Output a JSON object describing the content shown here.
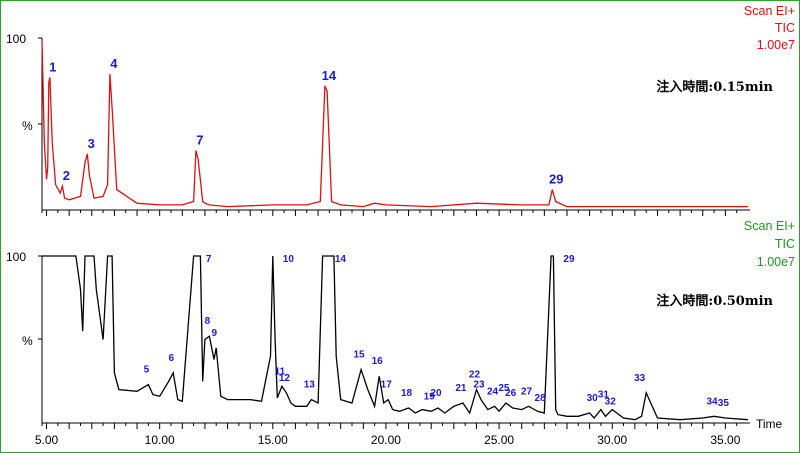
{
  "chart_data": [
    {
      "type": "line",
      "header": [
        "Scan EI+",
        "TIC",
        "1.00e7"
      ],
      "header_color": "#e01010",
      "trace_color": "#e01010",
      "ylabel_top": "100",
      "ylabel_mid": "%",
      "annotation": "注入時間:0.15min",
      "x": [
        4.8,
        4.9,
        5.0,
        5.05,
        5.1,
        5.15,
        5.25,
        5.4,
        5.6,
        5.7,
        5.8,
        6.0,
        6.5,
        6.7,
        6.8,
        6.9,
        7.1,
        7.5,
        7.7,
        7.8,
        7.9,
        8.1,
        9.0,
        10.0,
        11.0,
        11.5,
        11.6,
        11.7,
        11.9,
        12.0,
        12.2,
        13.0,
        15.0,
        16.5,
        17.1,
        17.3,
        17.4,
        17.6,
        18.0,
        19.0,
        19.5,
        20.0,
        22.0,
        24.0,
        26.0,
        27.2,
        27.35,
        27.5,
        28.0,
        30.0,
        32.0,
        34.0,
        36.0
      ],
      "y": [
        100,
        40,
        18,
        25,
        75,
        78,
        40,
        15,
        10,
        14,
        7,
        6,
        8,
        28,
        33,
        20,
        7,
        8,
        15,
        80,
        60,
        12,
        4,
        3,
        3,
        5,
        35,
        30,
        5,
        4,
        3,
        2,
        3,
        3,
        5,
        73,
        70,
        5,
        3,
        2,
        4,
        3,
        2,
        4,
        3,
        3,
        12,
        5,
        2,
        2,
        2,
        2,
        2
      ],
      "peaks": [
        {
          "label": "1",
          "x": 5.1,
          "y": 78
        },
        {
          "label": "2",
          "x": 5.7,
          "y": 14
        },
        {
          "label": "3",
          "x": 6.8,
          "y": 33
        },
        {
          "label": "4",
          "x": 7.8,
          "y": 80
        },
        {
          "label": "7",
          "x": 11.6,
          "y": 35
        },
        {
          "label": "14",
          "x": 17.3,
          "y": 73
        },
        {
          "label": "29",
          "x": 27.35,
          "y": 12
        }
      ]
    },
    {
      "type": "line",
      "header": [
        "Scan EI+",
        "TIC",
        "1.00e7"
      ],
      "header_color": "#1a9a1a",
      "trace_color": "#000000",
      "ylabel_top": "100",
      "ylabel_mid": "%",
      "annotation": "注入時間:0.50min",
      "xlabel": "Time",
      "x_ticks": [
        "5.00",
        "10.00",
        "15.00",
        "20.00",
        "25.00",
        "30.00",
        "35.00"
      ],
      "x_tick_values": [
        5,
        10,
        15,
        20,
        25,
        30,
        35
      ],
      "xlim": [
        4.8,
        36.0
      ],
      "x": [
        4.8,
        6.3,
        6.5,
        6.6,
        6.7,
        6.8,
        6.9,
        7.1,
        7.2,
        7.5,
        7.7,
        7.9,
        8.0,
        8.2,
        9.0,
        9.5,
        9.7,
        10.0,
        10.4,
        10.6,
        10.8,
        11.0,
        11.5,
        11.6,
        11.8,
        11.9,
        12.0,
        12.2,
        12.4,
        12.5,
        12.7,
        13.0,
        13.5,
        14.0,
        14.5,
        14.9,
        15.0,
        15.1,
        15.2,
        15.4,
        15.6,
        15.8,
        16.0,
        16.5,
        16.7,
        17.0,
        17.2,
        17.3,
        17.7,
        17.8,
        18.0,
        18.5,
        18.9,
        19.2,
        19.5,
        19.7,
        19.9,
        20.1,
        20.3,
        20.6,
        21.0,
        21.3,
        21.6,
        22.0,
        22.3,
        22.6,
        23.0,
        23.4,
        23.7,
        24.0,
        24.2,
        24.5,
        24.8,
        25.0,
        25.3,
        25.6,
        26.0,
        26.3,
        26.7,
        27.0,
        27.3,
        27.4,
        27.5,
        27.6,
        28.0,
        28.5,
        29.0,
        29.2,
        29.5,
        29.7,
        30.0,
        30.5,
        31.0,
        31.3,
        31.5,
        32.0,
        33.0,
        34.0,
        34.5,
        35.0,
        36.0
      ],
      "y": [
        100,
        100,
        80,
        55,
        100,
        100,
        100,
        100,
        80,
        50,
        100,
        100,
        30,
        20,
        19,
        23,
        17,
        16,
        25,
        30,
        14,
        13,
        100,
        100,
        100,
        25,
        50,
        52,
        38,
        45,
        16,
        14,
        14,
        14,
        13,
        40,
        100,
        50,
        15,
        22,
        18,
        12,
        10,
        10,
        14,
        12,
        100,
        100,
        100,
        40,
        14,
        12,
        32,
        20,
        10,
        28,
        12,
        14,
        8,
        7,
        9,
        6,
        8,
        7,
        9,
        6,
        10,
        12,
        6,
        20,
        14,
        8,
        10,
        7,
        12,
        9,
        8,
        10,
        7,
        6,
        100,
        100,
        8,
        5,
        4,
        4,
        6,
        3,
        8,
        4,
        8,
        3,
        2,
        4,
        18,
        3,
        2,
        3,
        4,
        3,
        2
      ]
    }
  ],
  "peaks_bottom": [
    {
      "label": "5",
      "x": 9.5,
      "y": 23
    },
    {
      "label": "6",
      "x": 10.6,
      "y": 30
    },
    {
      "label": "7",
      "x": 11.6,
      "y": 100
    },
    {
      "label": "8",
      "x": 12.2,
      "y": 52
    },
    {
      "label": "9",
      "x": 12.5,
      "y": 45
    },
    {
      "label": "10",
      "x": 15.0,
      "y": 100
    },
    {
      "label": "11",
      "x": 15.4,
      "y": 22
    },
    {
      "label": "12",
      "x": 15.6,
      "y": 18
    },
    {
      "label": "13",
      "x": 16.7,
      "y": 14
    },
    {
      "label": "14",
      "x": 17.3,
      "y": 100
    },
    {
      "label": "15",
      "x": 18.9,
      "y": 32
    },
    {
      "label": "16",
      "x": 19.7,
      "y": 28
    },
    {
      "label": "17",
      "x": 20.1,
      "y": 14
    },
    {
      "label": "18",
      "x": 21.0,
      "y": 9
    },
    {
      "label": "19",
      "x": 22.0,
      "y": 7
    },
    {
      "label": "20",
      "x": 22.3,
      "y": 9
    },
    {
      "label": "21",
      "x": 23.4,
      "y": 12
    },
    {
      "label": "22",
      "x": 24.0,
      "y": 20
    },
    {
      "label": "23",
      "x": 24.2,
      "y": 14
    },
    {
      "label": "24",
      "x": 24.8,
      "y": 10
    },
    {
      "label": "25",
      "x": 25.3,
      "y": 12
    },
    {
      "label": "26",
      "x": 25.6,
      "y": 9
    },
    {
      "label": "27",
      "x": 26.3,
      "y": 10
    },
    {
      "label": "28",
      "x": 26.9,
      "y": 6
    },
    {
      "label": "29",
      "x": 27.4,
      "y": 100
    },
    {
      "label": "30",
      "x": 29.2,
      "y": 6
    },
    {
      "label": "31",
      "x": 29.7,
      "y": 8
    },
    {
      "label": "32",
      "x": 30.0,
      "y": 4
    },
    {
      "label": "33",
      "x": 31.3,
      "y": 18
    },
    {
      "label": "34",
      "x": 34.5,
      "y": 4
    },
    {
      "label": "35",
      "x": 35.0,
      "y": 3
    }
  ]
}
